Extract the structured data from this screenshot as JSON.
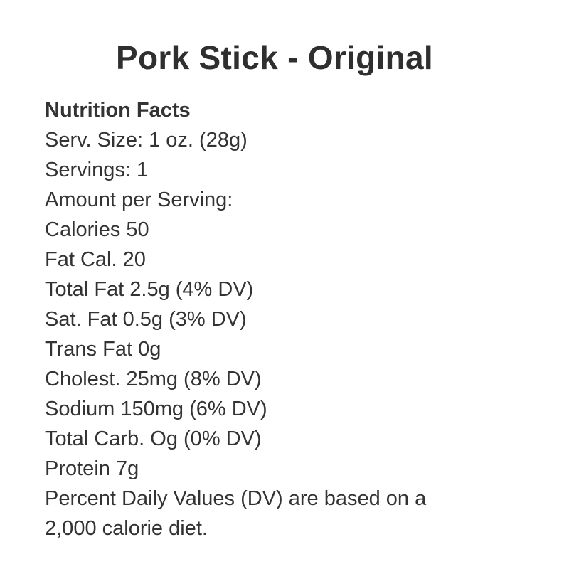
{
  "title": "Pork Stick - Original",
  "heading": "Nutrition Facts",
  "lines": [
    "Serv. Size: 1 oz. (28g)",
    "Servings: 1",
    "Amount per Serving:",
    "Calories 50",
    "Fat Cal. 20",
    "Total Fat 2.5g (4% DV)",
    "Sat. Fat 0.5g (3% DV)",
    "Trans Fat 0g",
    "Cholest. 25mg (8% DV)",
    "Sodium 150mg (6% DV)",
    "Total Carb. Og (0% DV)",
    "Protein 7g",
    "Percent Daily Values (DV) are based on a",
    "2,000 calorie diet."
  ]
}
